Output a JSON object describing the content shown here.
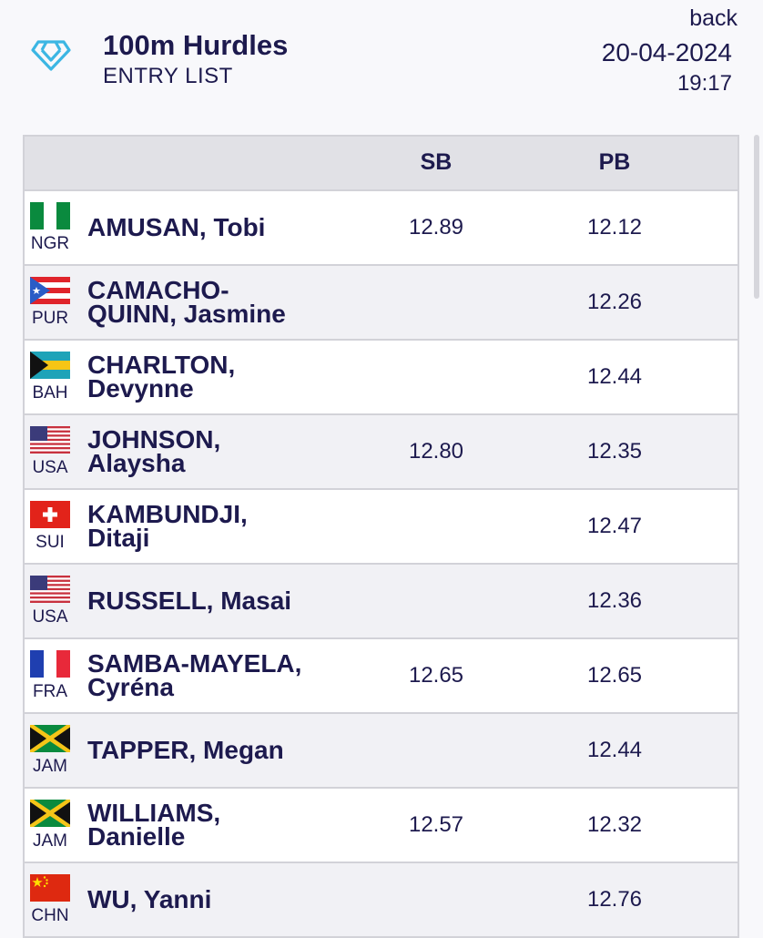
{
  "header": {
    "title": "100m Hurdles",
    "subtitle": "ENTRY LIST",
    "back_label": "back",
    "date": "20-04-2024",
    "time": "19:17",
    "logo_icon": "diamond-logo-icon"
  },
  "table": {
    "columns": [
      "",
      "SB",
      "PB"
    ],
    "rows": [
      {
        "country": "NGR",
        "name1": "AMUSAN, Tobi",
        "name2": "",
        "sb": "12.89",
        "pb": "12.12",
        "flag": "nigeria-flag-icon"
      },
      {
        "country": "PUR",
        "name1": "CAMACHO-",
        "name2": "QUINN, Jasmine",
        "sb": "",
        "pb": "12.26",
        "flag": "puerto-rico-flag-icon"
      },
      {
        "country": "BAH",
        "name1": "CHARLTON,",
        "name2": "Devynne",
        "sb": "",
        "pb": "12.44",
        "flag": "bahamas-flag-icon"
      },
      {
        "country": "USA",
        "name1": "JOHNSON,",
        "name2": "Alaysha",
        "sb": "12.80",
        "pb": "12.35",
        "flag": "usa-flag-icon"
      },
      {
        "country": "SUI",
        "name1": "KAMBUNDJI,",
        "name2": "Ditaji",
        "sb": "",
        "pb": "12.47",
        "flag": "switzerland-flag-icon"
      },
      {
        "country": "USA",
        "name1": "RUSSELL, Masai",
        "name2": "",
        "sb": "",
        "pb": "12.36",
        "flag": "usa-flag-icon"
      },
      {
        "country": "FRA",
        "name1": "SAMBA-MAYELA,",
        "name2": "Cyréna",
        "sb": "12.65",
        "pb": "12.65",
        "flag": "france-flag-icon"
      },
      {
        "country": "JAM",
        "name1": "TAPPER, Megan",
        "name2": "",
        "sb": "",
        "pb": "12.44",
        "flag": "jamaica-flag-icon"
      },
      {
        "country": "JAM",
        "name1": "WILLIAMS,",
        "name2": "Danielle",
        "sb": "12.57",
        "pb": "12.32",
        "flag": "jamaica-flag-icon"
      },
      {
        "country": "CHN",
        "name1": "WU, Yanni",
        "name2": "",
        "sb": "",
        "pb": "12.76",
        "flag": "china-flag-icon"
      }
    ]
  },
  "colors": {
    "text": "#1d1a4e",
    "logo": "#3cb6e3",
    "header_row": "#e1e1e6",
    "row_odd": "#ffffff",
    "row_even": "#f1f1f5"
  }
}
